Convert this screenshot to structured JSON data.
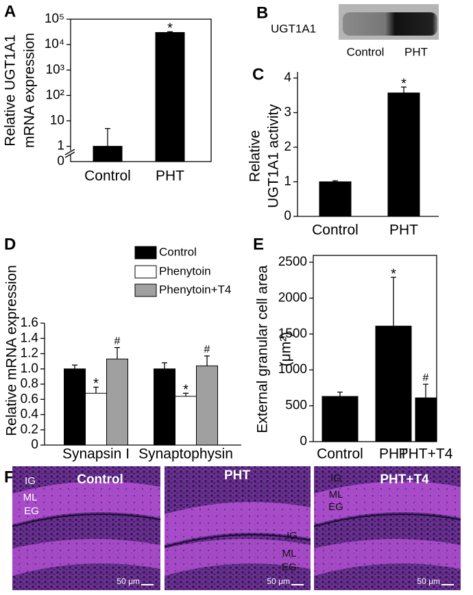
{
  "chart_data": [
    {
      "type": "bar",
      "panel": "A",
      "ylabel": [
        "Relative UGT1A1",
        "mRNA expression"
      ],
      "log_scale": true,
      "categories": [
        "Control",
        "PHT"
      ],
      "values": [
        1,
        30000
      ],
      "errors": [
        4,
        2000
      ],
      "color": "#000000",
      "annotations": [
        null,
        "*"
      ],
      "ylim": [
        0.25,
        100000
      ],
      "yticks": [
        1,
        10,
        {
          "value": 100,
          "label": "10²"
        },
        {
          "value": 1000,
          "label": "10³"
        },
        {
          "value": 10000,
          "label": "10⁴"
        },
        {
          "value": 100000,
          "label": "10⁵"
        }
      ],
      "break_label": "0",
      "frame": true
    },
    {
      "type": "bar",
      "panel": "C",
      "ylabel": [
        "Relative",
        "UGT1A1 activity"
      ],
      "categories": [
        "Control",
        "PHT"
      ],
      "values": [
        1,
        3.57
      ],
      "errors": [
        0.03,
        0.17
      ],
      "color": "#000000",
      "annotations": [
        null,
        "*"
      ],
      "ylim": [
        0,
        4
      ],
      "yticks": [
        0,
        1,
        2,
        3,
        4
      ],
      "frame": false
    },
    {
      "type": "grouped_bar",
      "panel": "D",
      "ylabel": [
        "Relative mRNA expression"
      ],
      "categories": [
        "Synapsin I",
        "Synaptophysin"
      ],
      "series": [
        {
          "name": "Control",
          "color": "#000000",
          "values": [
            1.0,
            1.0
          ],
          "errors": [
            0.05,
            0.08
          ],
          "annotations": [
            null,
            null
          ]
        },
        {
          "name": "Phenytoin",
          "color": "#ffffff",
          "values": [
            0.68,
            0.64
          ],
          "errors": [
            0.08,
            0.04
          ],
          "annotations": [
            "*",
            "*"
          ]
        },
        {
          "name": "Phenytoin+T4",
          "color": "#a0a0a0",
          "values": [
            1.13,
            1.04
          ],
          "errors": [
            0.15,
            0.13
          ],
          "annotations": [
            "#",
            "#"
          ]
        }
      ],
      "ylim": [
        0,
        1.6
      ],
      "yticks": [
        0,
        0.2,
        0.4,
        0.6,
        0.8,
        {
          "value": 1,
          "label": "1.0"
        },
        1.2,
        1.4,
        1.6
      ],
      "frame": false
    },
    {
      "type": "bar",
      "panel": "E",
      "ylabel": [
        "External granular cell area",
        "(μm²)"
      ],
      "categories": [
        "Control",
        "PHT",
        "PHT+T4"
      ],
      "values": [
        630,
        1610,
        610
      ],
      "errors": [
        60,
        680,
        190
      ],
      "color": "#000000",
      "annotations": [
        null,
        "*",
        "#"
      ],
      "ylim": [
        0,
        2500
      ],
      "yticks": [
        0,
        500,
        1000,
        1500,
        2000,
        2500
      ],
      "frame": true
    }
  ],
  "blot": {
    "panel": "B",
    "label": "UGT1A1",
    "lanes": [
      "Control",
      "PHT"
    ]
  },
  "histology": {
    "panel": "F",
    "images": [
      {
        "title": "Control",
        "layers": [
          "IG",
          "ML",
          "EG"
        ],
        "scale": "50 μm"
      },
      {
        "title": "PHT",
        "layers": [
          "IG",
          "ML",
          "EG"
        ],
        "scale": "50 μm"
      },
      {
        "title": "PHT+T4",
        "layers": [
          "IG",
          "ML",
          "EG"
        ],
        "scale": "50 μm"
      }
    ]
  }
}
